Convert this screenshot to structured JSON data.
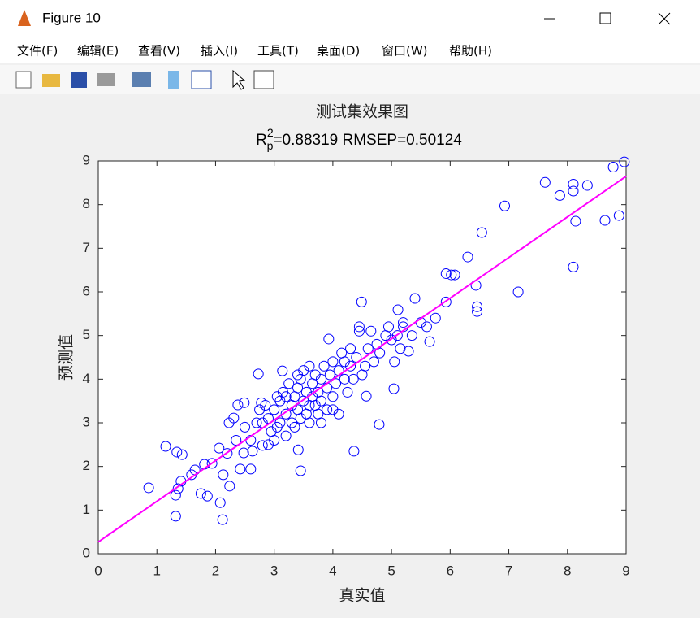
{
  "window": {
    "title": "Figure 10"
  },
  "menu": [
    "文件(F)",
    "编辑(E)",
    "查看(V)",
    "插入(I)",
    "工具(T)",
    "桌面(D)",
    "窗口(W)",
    "帮助(H)"
  ],
  "chart_data": {
    "type": "scatter",
    "title": "测试集效果图",
    "subtitle": {
      "base": "R",
      "sup": "2",
      "sub": "p",
      "text": "=0.88319  RMSEP=0.50124"
    },
    "xlabel": "真实值",
    "ylabel": "预测值",
    "xlim": [
      0,
      9
    ],
    "ylim": [
      0,
      9
    ],
    "xticks": [
      0,
      1,
      2,
      3,
      4,
      5,
      6,
      7,
      8,
      9
    ],
    "yticks": [
      0,
      1,
      2,
      3,
      4,
      5,
      6,
      7,
      8,
      9
    ],
    "series": [
      {
        "color": "#0000ff",
        "x": [
          0.86,
          1.15,
          1.32,
          1.32,
          1.34,
          1.43,
          1.36,
          1.41,
          1.59,
          1.65,
          1.75,
          1.81,
          1.86,
          1.94,
          2.12,
          2.08,
          2.06,
          2.13,
          2.24,
          2.23,
          2.31,
          2.38,
          2.49,
          2.42,
          2.48,
          2.6,
          2.63,
          2.73,
          2.78,
          2.8,
          2.8,
          3.14,
          3.41,
          3.45,
          3.93,
          4.36,
          4.49,
          4.45,
          4.79,
          4.57,
          5.04,
          5.11,
          5.29,
          5.4,
          5.93,
          5.65,
          5.93,
          6.02,
          6.08,
          6.3,
          6.44,
          6.46,
          6.46,
          6.54,
          6.93,
          7.16,
          7.62,
          7.87,
          8.1,
          8.1,
          8.1,
          8.14,
          8.34,
          8.64,
          8.78,
          8.88,
          8.97,
          2.9,
          2.95,
          3.0,
          3.05,
          3.1,
          3.1,
          3.15,
          3.2,
          3.2,
          3.25,
          3.3,
          3.3,
          3.35,
          3.35,
          3.4,
          3.4,
          3.45,
          3.45,
          3.5,
          3.5,
          3.55,
          3.55,
          3.6,
          3.6,
          3.65,
          3.65,
          3.7,
          3.7,
          3.75,
          3.75,
          3.8,
          3.8,
          3.85,
          3.9,
          3.9,
          3.95,
          4.0,
          4.0,
          4.05,
          4.1,
          4.1,
          4.15,
          4.2,
          4.25,
          4.3,
          4.3,
          4.35,
          4.4,
          4.45,
          4.5,
          4.55,
          4.6,
          4.65,
          4.7,
          4.75,
          4.8,
          4.9,
          4.95,
          5.0,
          5.05,
          5.1,
          5.15,
          5.2,
          5.2,
          5.35,
          5.5,
          5.6,
          5.75,
          2.85,
          2.7,
          2.6,
          2.5,
          2.35,
          2.2,
          2.9,
          3.0,
          3.2,
          3.4,
          3.6,
          3.8,
          4.0,
          4.2,
          2.75,
          3.05
        ],
        "values": [
          1.51,
          2.46,
          0.86,
          1.34,
          2.33,
          2.27,
          1.49,
          1.66,
          1.81,
          1.92,
          1.38,
          2.05,
          1.32,
          2.07,
          0.78,
          1.17,
          2.42,
          1.81,
          1.55,
          3.0,
          3.11,
          3.41,
          3.46,
          1.94,
          2.31,
          1.94,
          2.35,
          4.12,
          3.46,
          2.48,
          3.0,
          4.19,
          2.38,
          1.9,
          4.92,
          2.35,
          5.77,
          5.2,
          2.96,
          3.61,
          3.78,
          5.59,
          4.64,
          5.85,
          5.77,
          4.86,
          6.42,
          6.39,
          6.39,
          6.8,
          6.15,
          5.66,
          5.55,
          7.36,
          7.97,
          6.0,
          8.51,
          8.21,
          8.47,
          8.31,
          6.57,
          7.62,
          8.44,
          7.64,
          8.86,
          7.75,
          8.98,
          3.1,
          2.8,
          3.3,
          2.9,
          3.5,
          3.0,
          3.7,
          3.2,
          2.7,
          3.9,
          3.4,
          3.0,
          3.6,
          2.9,
          3.8,
          3.3,
          4.0,
          3.1,
          3.5,
          4.2,
          3.2,
          3.7,
          4.3,
          3.0,
          3.6,
          3.9,
          3.4,
          4.1,
          3.7,
          3.2,
          4.0,
          3.5,
          4.3,
          3.8,
          3.3,
          4.1,
          3.6,
          4.4,
          3.9,
          4.2,
          3.2,
          4.6,
          4.0,
          3.7,
          4.3,
          4.7,
          4.0,
          4.5,
          5.1,
          4.1,
          4.3,
          4.7,
          5.1,
          4.4,
          4.8,
          4.6,
          5.0,
          5.2,
          4.9,
          4.4,
          5.0,
          4.7,
          5.3,
          5.2,
          5.0,
          5.3,
          5.2,
          5.4,
          3.4,
          3.0,
          2.6,
          2.9,
          2.6,
          2.3,
          2.5,
          2.6,
          3.6,
          4.1,
          3.4,
          3.0,
          3.3,
          4.4,
          3.3,
          3.6
        ]
      },
      {
        "type": "line",
        "color": "#ff00ff",
        "x": [
          0,
          9
        ],
        "values": [
          0.27,
          8.65
        ]
      }
    ]
  }
}
